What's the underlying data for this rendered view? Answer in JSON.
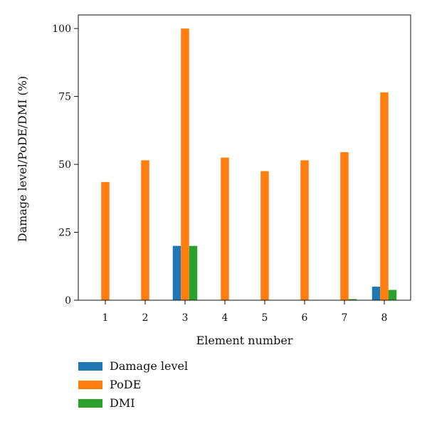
{
  "chart_data": {
    "type": "bar",
    "title": "",
    "xlabel": "Element number",
    "ylabel": "Damage level/PoDE/DMI (%)",
    "categories": [
      "1",
      "2",
      "3",
      "4",
      "5",
      "6",
      "7",
      "8"
    ],
    "ylim": [
      0,
      105
    ],
    "yticks": [
      0,
      25,
      50,
      75,
      100
    ],
    "grid": false,
    "legend_position": "bottom-left",
    "series": [
      {
        "name": "Damage level",
        "color": "#1f77b4",
        "values": [
          0,
          0,
          20,
          0,
          0,
          0,
          0,
          5
        ]
      },
      {
        "name": "PoDE",
        "color": "#ff7f0e",
        "values": [
          43.5,
          51.5,
          100,
          52.5,
          47.5,
          51.5,
          54.5,
          76.5
        ]
      },
      {
        "name": "DMI",
        "color": "#2ca02c",
        "values": [
          0,
          0,
          20,
          0,
          0,
          0,
          0.4,
          3.8
        ]
      }
    ]
  }
}
